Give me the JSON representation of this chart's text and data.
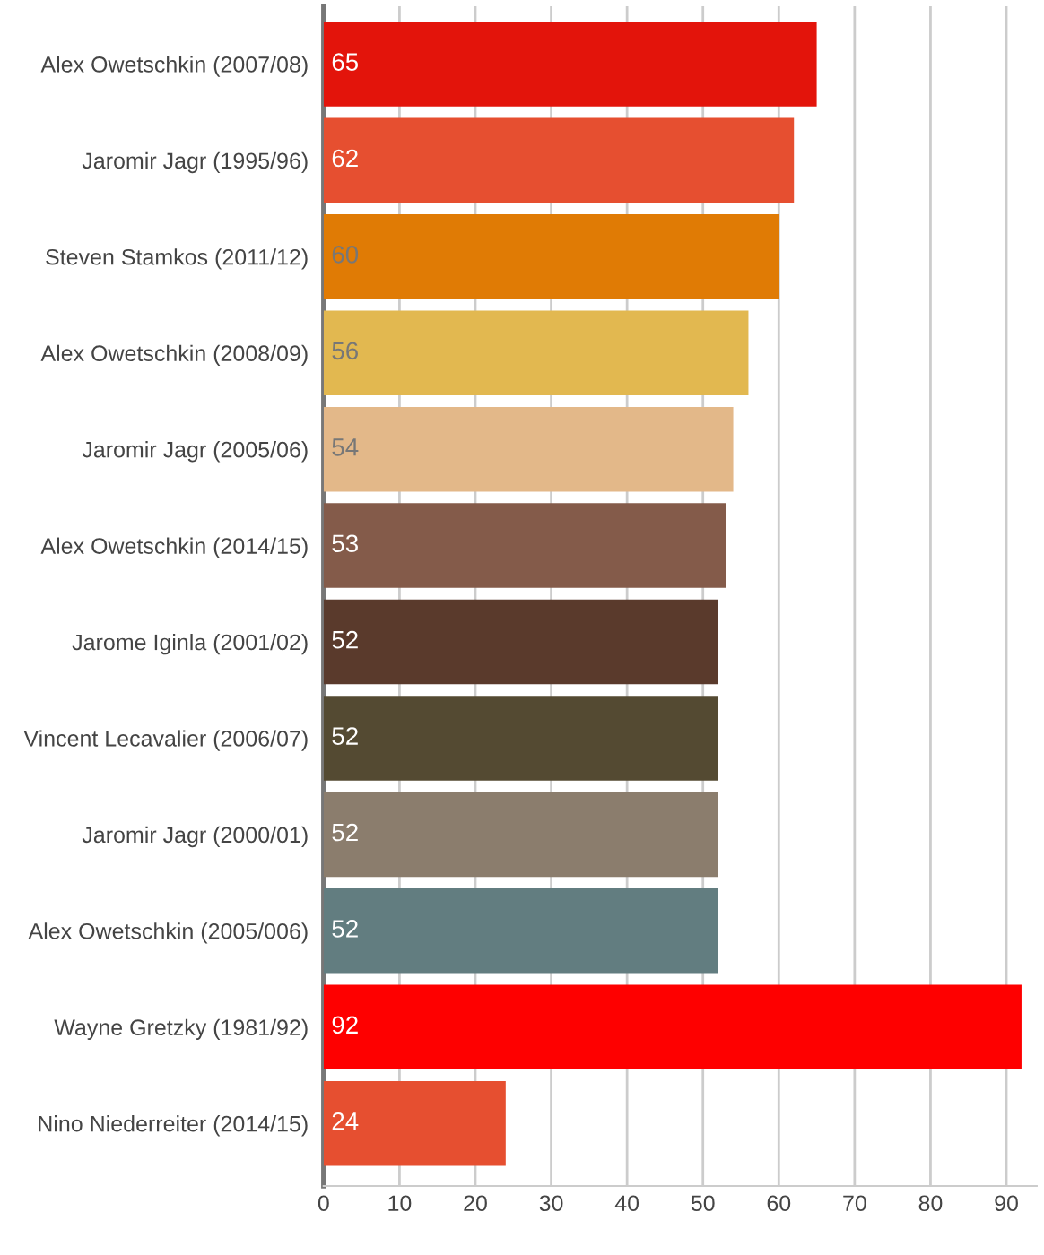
{
  "chart_data": {
    "type": "bar",
    "orientation": "horizontal",
    "categories": [
      "Alex Owetschkin (2007/08)",
      "Jaromir Jagr (1995/96)",
      "Steven Stamkos (2011/12)",
      "Alex Owetschkin (2008/09)",
      "Jaromir Jagr (2005/06)",
      "Alex Owetschkin (2014/15)",
      "Jarome Iginla (2001/02)",
      "Vincent Lecavalier (2006/07)",
      "Jaromir Jagr (2000/01)",
      "Alex Owetschkin (2005/006)",
      "Wayne Gretzky (1981/92)",
      "Nino Niederreiter (2014/15)"
    ],
    "values": [
      65,
      62,
      60,
      56,
      54,
      53,
      52,
      52,
      52,
      52,
      92,
      24
    ],
    "colors": [
      "#e3140b",
      "#e64f30",
      "#e07b05",
      "#e2b850",
      "#e3b889",
      "#845b4a",
      "#5a3a2c",
      "#544a32",
      "#8b7d6d",
      "#627d80",
      "#fe0000",
      "#e64f30"
    ],
    "xlim": [
      0,
      94
    ],
    "xticks": [
      0,
      10,
      20,
      30,
      40,
      50,
      60,
      70,
      80,
      90
    ],
    "grid": "x",
    "data_labels": true
  }
}
